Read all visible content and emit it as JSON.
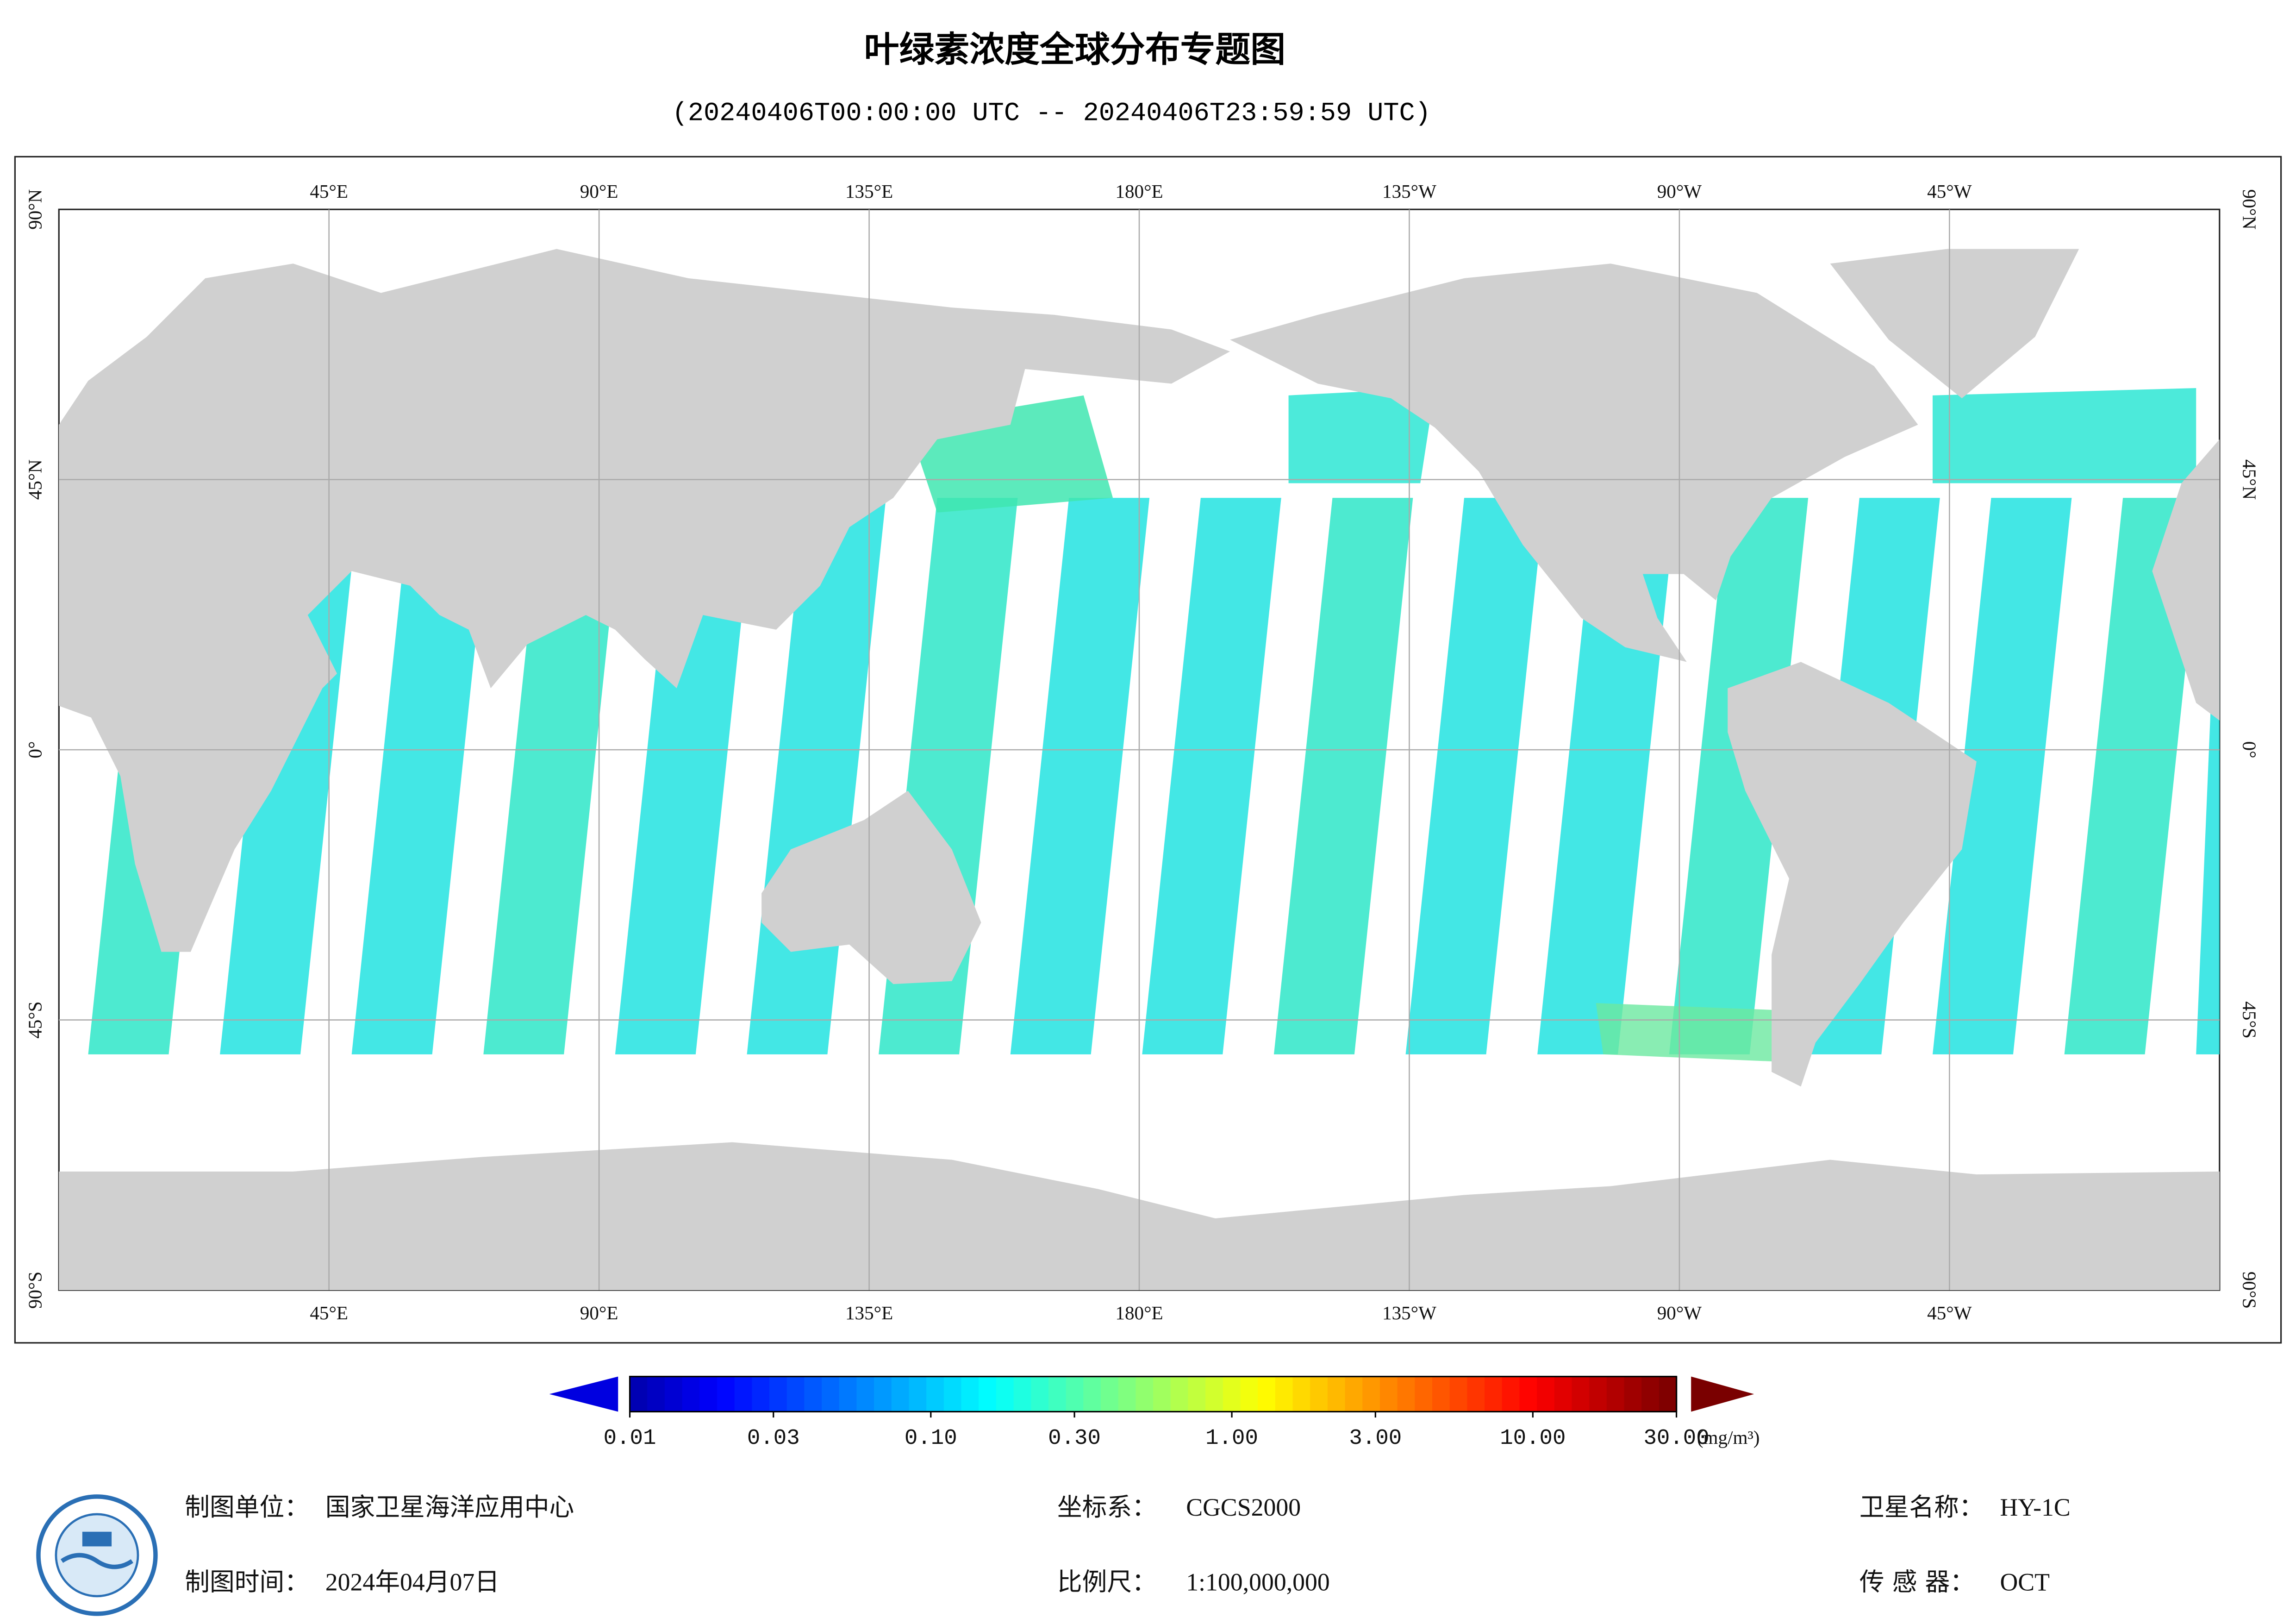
{
  "title": "叶绿素浓度全球分布专题图",
  "subtitle": "(20240406T00:00:00 UTC -- 20240406T23:59:59 UTC)",
  "map": {
    "lon_labels": [
      "45°E",
      "90°E",
      "135°E",
      "180°E",
      "135°W",
      "90°W",
      "45°W"
    ],
    "lat_labels": [
      "90°N",
      "45°N",
      "0°",
      "45°S",
      "90°S"
    ]
  },
  "colorbar": {
    "scale": "log",
    "lim": [
      0.01,
      30
    ],
    "ticks": [
      0.01,
      0.03,
      {
        "value": 0.1,
        "label": "0.10"
      },
      {
        "value": 0.3,
        "label": "0.30"
      },
      {
        "value": 1,
        "label": "1.00"
      },
      {
        "value": 3,
        "label": "3.00"
      },
      {
        "value": 10,
        "label": "10.00"
      },
      {
        "value": 30,
        "label": "30.00"
      }
    ],
    "unit": "(mg/m³)"
  },
  "footer": {
    "unit": {
      "label": "制图单位：",
      "value": "国家卫星海洋应用中心"
    },
    "time": {
      "label": "制图时间：",
      "value": "2024年04月07日"
    },
    "crs": {
      "label": "坐标系：",
      "value": "CGCS2000"
    },
    "scale": {
      "label": "比例尺：",
      "value": "1:100,000,000"
    },
    "satellite": {
      "label": "卫星名称：",
      "value": "HY-1C"
    },
    "sensor": {
      "label": "传 感 器：",
      "value": "OCT"
    }
  }
}
